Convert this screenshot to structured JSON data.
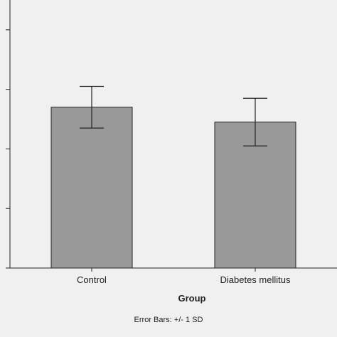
{
  "chart_data": {
    "type": "bar",
    "categories": [
      "Control",
      "Diabetes mellitus"
    ],
    "values": [
      2.7,
      2.45
    ],
    "error_bars": {
      "type": "sd",
      "lower": [
        2.35,
        2.05
      ],
      "upper": [
        3.05,
        2.85
      ]
    },
    "xlabel": "Group",
    "ylabel": "",
    "ylim": [
      0,
      4.5
    ],
    "note": "Error Bars: +/- 1 SD",
    "grid": false,
    "legend": "none"
  },
  "colors": {
    "plot_background": "#f0f0f0",
    "bar_fill": "#999999",
    "bar_stroke": "#222222",
    "axis": "#222222"
  }
}
